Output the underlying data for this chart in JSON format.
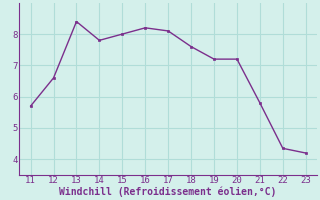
{
  "x": [
    11,
    12,
    13,
    14,
    15,
    16,
    17,
    18,
    19,
    20,
    21,
    22,
    23
  ],
  "y": [
    5.7,
    6.6,
    8.4,
    7.8,
    8.0,
    8.2,
    8.1,
    7.6,
    7.2,
    7.2,
    5.8,
    4.35,
    4.2
  ],
  "line_color": "#7b2f8c",
  "marker_color": "#7b2f8c",
  "bg_color": "#d4f0eb",
  "grid_color": "#b0ddd8",
  "xlabel": "Windchill (Refroidissement éolien,°C)",
  "xlabel_color": "#7b2f8c",
  "tick_color": "#7b2f8c",
  "spine_color": "#7b2f8c",
  "xlim": [
    10.5,
    23.5
  ],
  "ylim": [
    3.5,
    9.0
  ],
  "yticks": [
    4,
    5,
    6,
    7,
    8
  ],
  "xticks": [
    11,
    12,
    13,
    14,
    15,
    16,
    17,
    18,
    19,
    20,
    21,
    22,
    23
  ]
}
